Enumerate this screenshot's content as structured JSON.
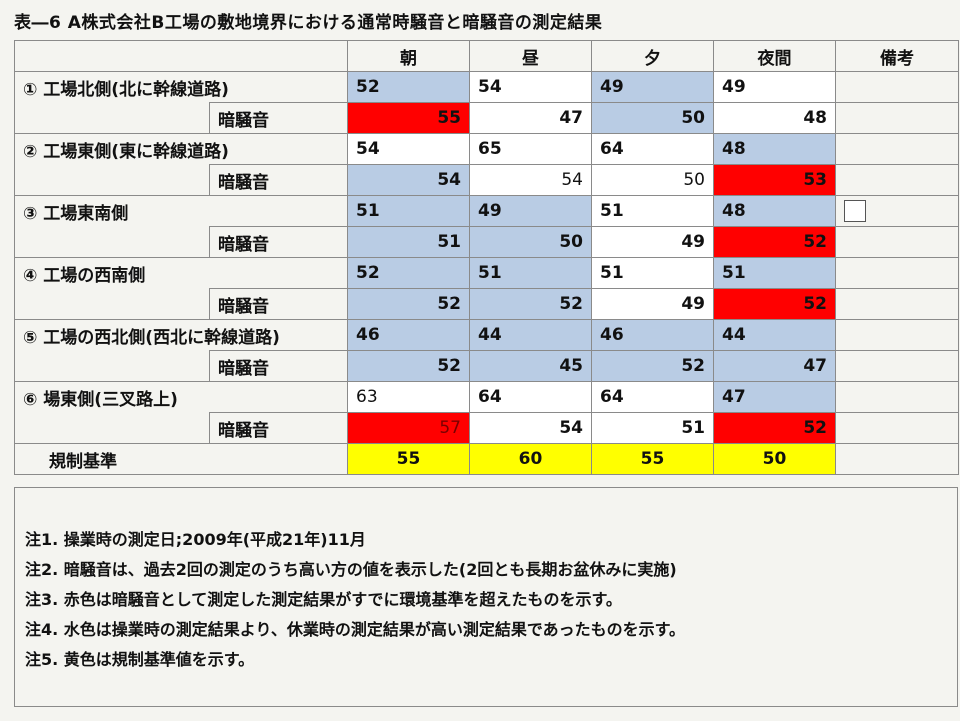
{
  "title": "表―6  A株式会社B工場の敷地境界における通常時騒音と暗騒音の測定結果",
  "columns": [
    "朝",
    "昼",
    "夕",
    "夜間",
    "備考"
  ],
  "sub_label": "暗騒音",
  "rows": [
    {
      "label": "① 工場北側(北に幹線道路)",
      "normal": [
        "52",
        "54",
        "49",
        "49"
      ],
      "background": [
        "55",
        "47",
        "50",
        "48"
      ]
    },
    {
      "label": "② 工場東側(東に幹線道路)",
      "normal": [
        "54",
        "65",
        "64",
        "48"
      ],
      "background": [
        "54",
        "54",
        "50",
        "53"
      ]
    },
    {
      "label": "③ 工場東南側",
      "normal": [
        "51",
        "49",
        "51",
        "48"
      ],
      "background": [
        "51",
        "50",
        "49",
        "52"
      ]
    },
    {
      "label": "④ 工場の西南側",
      "normal": [
        "52",
        "51",
        "51",
        "51"
      ],
      "background": [
        "52",
        "52",
        "49",
        "52"
      ]
    },
    {
      "label": "⑤ 工場の西北側(西北に幹線道路)",
      "normal": [
        "46",
        "44",
        "46",
        "44"
      ],
      "background": [
        "52",
        "45",
        "52",
        "47"
      ]
    },
    {
      "label": "⑥ 場東側(三叉路上)",
      "normal": [
        "63",
        "64",
        "64",
        "47"
      ],
      "background": [
        "57",
        "54",
        "51",
        "52"
      ]
    }
  ],
  "standard": {
    "label": "規制基準",
    "values": [
      "55",
      "60",
      "55",
      "50"
    ]
  },
  "notes": [
    "注1.  操業時の測定日;2009年(平成21年)11月",
    "注2.  暗騒音は、過去2回の測定のうち高い方の値を表示した(2回とも長期お盆休みに実施)",
    "注3. 赤色は暗騒音として測定した測定結果がすでに環境基準を超えたものを示す。",
    "注4.  水色は操業時の測定結果より、休業時の測定結果が高い測定結果であったものを示す。",
    "注5.  黄色は規制基準値を示す。"
  ],
  "colors": {
    "blue": "#b9cce4",
    "red": "#ff0000",
    "yellow": "#ffff00",
    "white": "#ffffff"
  }
}
